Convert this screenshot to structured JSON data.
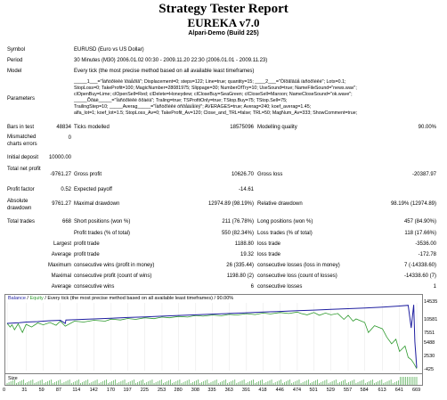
{
  "report": {
    "title": "Strategy Tester Report",
    "expert": "EUREKA v7.0",
    "server": "Alpari-Demo (Build 225)"
  },
  "summary": {
    "symbol_label": "Symbol",
    "symbol_value": "EURUSD (Euro vs US Dollar)",
    "period_label": "Period",
    "period_value": "30 Minutes (M30) 2006.01.02 00:30 - 2009.11.20 22:30 (2006.01.01 - 2009.11.23)",
    "model_label": "Model",
    "model_value": "Every tick (the most precise method based on all available least timeframes)",
    "parameters_label": "Parameters",
    "parameters_lines": [
      "_____1___=\"Íàñòðîéêè îðäåðîâ\"; Displacement=0; steps=122; Line=true; quantity=15; ____2___=\"Òîðãîâûå íàñòðîéêè\"; Lots=0.1;",
      "StopLoss=0; TakeProfit=100; MagicNumber=28081975; Slippage=30; NumberOfTry=10; UseSound=true; NameFileSound=\"news.wav\";",
      "clOpenBuy=Lime; clOpenSell=Red; clDelete=Honeydew; clCloseBuy=SeaGreen; clCloseSell=Maroon; NameCloseSound=\"ok.wave\";",
      "_____Õðàë_____=\"Íàñòðîéêè õðàëà\"; Traling=true; TSProfitOnly=true; TStop.Buy=75; TStop.Sell=75;",
      "TrailingStep=10; _____Averag_____=\"Íàñòðîéêè óñðåäíåíèÿ\"; AVERAGES=true; Averag=240; koef_averag=1.45;",
      "alfa_lot=1; koef_lot=1.5; StopLoss_Av=0; TakeProfit_Av=120; Close_and_TRL=false; TRL=50; MagNum_Av=333; ShowComment=true;"
    ],
    "bars_label": "Bars in test",
    "bars_value": "48834",
    "ticks_label": "Ticks modelled",
    "ticks_value": "18575096",
    "quality_label": "Modelling quality",
    "quality_value": "90.00%",
    "mismatch_label": "Mismatched charts errors",
    "mismatch_value": "0",
    "deposit_label": "Initial deposit",
    "deposit_value": "10000.00",
    "netprofit_label": "Total net profit",
    "netprofit_value": "-9761.27",
    "grossprofit_label": "Gross profit",
    "grossprofit_value": "10626.70",
    "grossloss_label": "Gross loss",
    "grossloss_value": "-20387.97",
    "pf_label": "Profit factor",
    "pf_value": "0.52",
    "payoff_label": "Expected payoff",
    "payoff_value": "-14.61",
    "absdd_label": "Absolute drawdown",
    "absdd_value": "9761.27",
    "maxdd_label": "Maximal drawdown",
    "maxdd_value": "12974.89 (98.19%)",
    "reldd_label": "Relative drawdown",
    "reldd_value": "98.19% (12974.89)",
    "trades_label": "Total trades",
    "trades_value": "668",
    "short_label": "Short positions (won %)",
    "short_value": "211 (76.78%)",
    "long_label": "Long positions (won %)",
    "long_value": "457 (84.90%)",
    "pt_label": "Profit trades (% of total)",
    "pt_value": "550 (82.34%)",
    "lt_label": "Loss trades (% of total)",
    "lt_value": "118 (17.66%)",
    "largest": "Largest",
    "average": "Average",
    "maximum": "Maximum",
    "maximal": "Maximal",
    "lpt_label": "profit trade",
    "lpt_value": "1188.80",
    "llt_label": "loss trade",
    "llt_value": "-3536.00",
    "apt_label": "profit trade",
    "apt_value": "19.32",
    "alt_label": "loss trade",
    "alt_value": "-172.78",
    "mcw_label": "consecutive wins (profit in money)",
    "mcw_value": "26 (335.44)",
    "mcl_label": "consecutive losses (loss in money)",
    "mcl_value": "7 (-14338.60)",
    "mcp_label": "consecutive profit (count of wins)",
    "mcp_value": "1198.80 (2)",
    "mcloss_label": "consecutive loss (count of losses)",
    "mcloss_value": "-14338.60 (7)",
    "acw_label": "consecutive wins",
    "acw_value": "6",
    "acl_label": "consecutive losses",
    "acl_value": "1"
  },
  "chart_data": {
    "type": "line",
    "title": "Balance / Equity / Every tick (the most precise method based on all available least timeframes) / 90.00%",
    "legend": [
      "Balance",
      "Equity"
    ],
    "colors": {
      "balance": "#1f1fa0",
      "equity": "#2e9a2e"
    },
    "x_ticks": [
      "0",
      "31",
      "59",
      "87",
      "114",
      "142",
      "170",
      "197",
      "225",
      "253",
      "280",
      "308",
      "335",
      "363",
      "391",
      "418",
      "446",
      "474",
      "501",
      "529",
      "557",
      "584",
      "613",
      "641",
      "669"
    ],
    "y_ticks": [
      "14535",
      "10581",
      "7551",
      "5488",
      "2530",
      "-425"
    ],
    "ylim": [
      -425,
      14535
    ],
    "xlim": [
      0,
      669
    ],
    "balance": [
      [
        0,
        10000
      ],
      [
        20,
        10150
      ],
      [
        31,
        10300
      ],
      [
        50,
        10400
      ],
      [
        59,
        10500
      ],
      [
        70,
        10600
      ],
      [
        80,
        10650
      ],
      [
        87,
        10700
      ],
      [
        95,
        10000
      ],
      [
        96,
        10750
      ],
      [
        114,
        10850
      ],
      [
        142,
        11000
      ],
      [
        170,
        11150
      ],
      [
        197,
        11300
      ],
      [
        225,
        11450
      ],
      [
        253,
        11600
      ],
      [
        280,
        11750
      ],
      [
        308,
        11900
      ],
      [
        335,
        12050
      ],
      [
        363,
        12200
      ],
      [
        391,
        12350
      ],
      [
        418,
        12500
      ],
      [
        446,
        12650
      ],
      [
        474,
        12800
      ],
      [
        501,
        12950
      ],
      [
        529,
        13100
      ],
      [
        557,
        13250
      ],
      [
        584,
        13400
      ],
      [
        613,
        13600
      ],
      [
        641,
        13850
      ],
      [
        655,
        14000
      ],
      [
        660,
        9000
      ],
      [
        664,
        14100
      ],
      [
        666,
        6000
      ],
      [
        669,
        200
      ]
    ],
    "equity": [
      [
        0,
        10000
      ],
      [
        5,
        9200
      ],
      [
        8,
        9700
      ],
      [
        12,
        8600
      ],
      [
        18,
        9900
      ],
      [
        25,
        8000
      ],
      [
        31,
        9800
      ],
      [
        40,
        9200
      ],
      [
        50,
        10100
      ],
      [
        59,
        9700
      ],
      [
        70,
        10200
      ],
      [
        80,
        9600
      ],
      [
        87,
        10500
      ],
      [
        95,
        9400
      ],
      [
        110,
        10500
      ],
      [
        125,
        10300
      ],
      [
        142,
        10700
      ],
      [
        160,
        10500
      ],
      [
        170,
        10950
      ],
      [
        185,
        10750
      ],
      [
        197,
        11100
      ],
      [
        210,
        10900
      ],
      [
        225,
        11250
      ],
      [
        240,
        11050
      ],
      [
        253,
        11400
      ],
      [
        265,
        11250
      ],
      [
        280,
        11550
      ],
      [
        295,
        11400
      ],
      [
        308,
        11750
      ],
      [
        320,
        11600
      ],
      [
        335,
        11850
      ],
      [
        350,
        11700
      ],
      [
        363,
        12000
      ],
      [
        375,
        11850
      ],
      [
        391,
        12150
      ],
      [
        405,
        11950
      ],
      [
        418,
        12300
      ],
      [
        430,
        12100
      ],
      [
        446,
        12400
      ],
      [
        460,
        12200
      ],
      [
        474,
        12500
      ],
      [
        480,
        12200
      ],
      [
        490,
        11900
      ],
      [
        501,
        12400
      ],
      [
        510,
        11800
      ],
      [
        520,
        12300
      ],
      [
        529,
        11900
      ],
      [
        540,
        12200
      ],
      [
        550,
        10900
      ],
      [
        557,
        11800
      ],
      [
        565,
        10500
      ],
      [
        570,
        11000
      ],
      [
        584,
        10200
      ],
      [
        590,
        8000
      ],
      [
        600,
        9500
      ],
      [
        613,
        8800
      ],
      [
        620,
        7000
      ],
      [
        628,
        5500
      ],
      [
        635,
        6500
      ],
      [
        641,
        3800
      ],
      [
        650,
        5000
      ],
      [
        655,
        2500
      ],
      [
        660,
        2000
      ],
      [
        664,
        1200
      ],
      [
        669,
        0
      ]
    ]
  }
}
